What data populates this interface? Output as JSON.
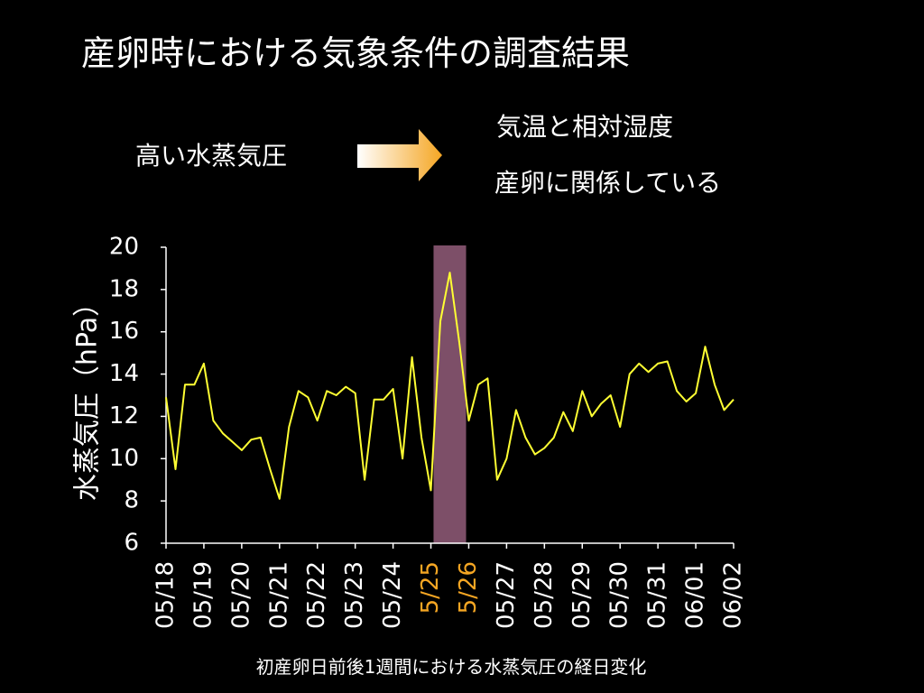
{
  "title": "産卵時における気象条件の調査結果",
  "left_note": "高い水蒸気圧",
  "right_notes": [
    "気温と相対湿度",
    "産卵に関係している"
  ],
  "caption": "初産卵日前後1週間における水蒸気圧の経日変化",
  "chart_data": {
    "type": "line",
    "y_label": "水蒸気圧（hPa）",
    "xlim": [
      0,
      15
    ],
    "xticks": [
      {
        "value": 0,
        "label": "05/18"
      },
      {
        "value": 1,
        "label": "05/19"
      },
      {
        "value": 2,
        "label": "05/20"
      },
      {
        "value": 3,
        "label": "05/21"
      },
      {
        "value": 4,
        "label": "05/22"
      },
      {
        "value": 5,
        "label": "05/23"
      },
      {
        "value": 6,
        "label": "05/24"
      },
      {
        "value": 7,
        "label": "5/25"
      },
      {
        "value": 8,
        "label": "5/26"
      },
      {
        "value": 9,
        "label": "05/27"
      },
      {
        "value": 10,
        "label": "05/28"
      },
      {
        "value": 11,
        "label": "05/29"
      },
      {
        "value": 12,
        "label": "05/30"
      },
      {
        "value": 13,
        "label": "05/31"
      },
      {
        "value": 14,
        "label": "06/01"
      },
      {
        "value": 15,
        "label": "06/02"
      }
    ],
    "highlight_ticks": [
      7,
      8
    ],
    "highlight_tick_color": "#f5a623",
    "highlight_range": [
      7.07,
      7.93
    ],
    "highlight_color": "#7d4f68",
    "ylim": [
      6,
      20
    ],
    "yticks": [
      6,
      8,
      10,
      12,
      14,
      16,
      18,
      20
    ],
    "x": [
      0,
      0.25,
      0.5,
      0.75,
      1,
      1.25,
      1.5,
      1.75,
      2,
      2.25,
      2.5,
      2.75,
      3,
      3.25,
      3.5,
      3.75,
      4,
      4.25,
      4.5,
      4.75,
      5,
      5.25,
      5.5,
      5.75,
      6,
      6.25,
      6.5,
      6.75,
      7,
      7.25,
      7.5,
      7.75,
      8,
      8.25,
      8.5,
      8.75,
      9,
      9.25,
      9.5,
      9.75,
      10,
      10.25,
      10.5,
      10.75,
      11,
      11.25,
      11.5,
      11.75,
      12,
      12.25,
      12.5,
      12.75,
      13,
      13.25,
      13.5,
      13.75,
      14,
      14.25,
      14.5,
      14.75,
      15
    ],
    "series": [
      {
        "color": "#ffff33",
        "values": [
          12.9,
          9.5,
          13.5,
          13.5,
          14.5,
          11.8,
          11.2,
          10.8,
          10.4,
          10.9,
          11.0,
          9.5,
          8.1,
          11.5,
          13.2,
          12.9,
          11.8,
          13.2,
          13.0,
          13.4,
          13.1,
          9.0,
          12.8,
          12.8,
          13.3,
          10.0,
          14.8,
          11.0,
          8.5,
          16.5,
          18.8,
          15.5,
          11.8,
          13.5,
          13.8,
          9.0,
          10.0,
          12.3,
          11.0,
          10.2,
          10.5,
          11.0,
          12.2,
          11.3,
          13.2,
          12.0,
          12.6,
          13.0,
          11.5,
          14.0,
          14.5,
          14.1,
          14.5,
          14.6,
          13.2,
          12.7,
          13.1,
          15.3,
          13.5,
          12.3,
          12.8
        ]
      }
    ]
  }
}
